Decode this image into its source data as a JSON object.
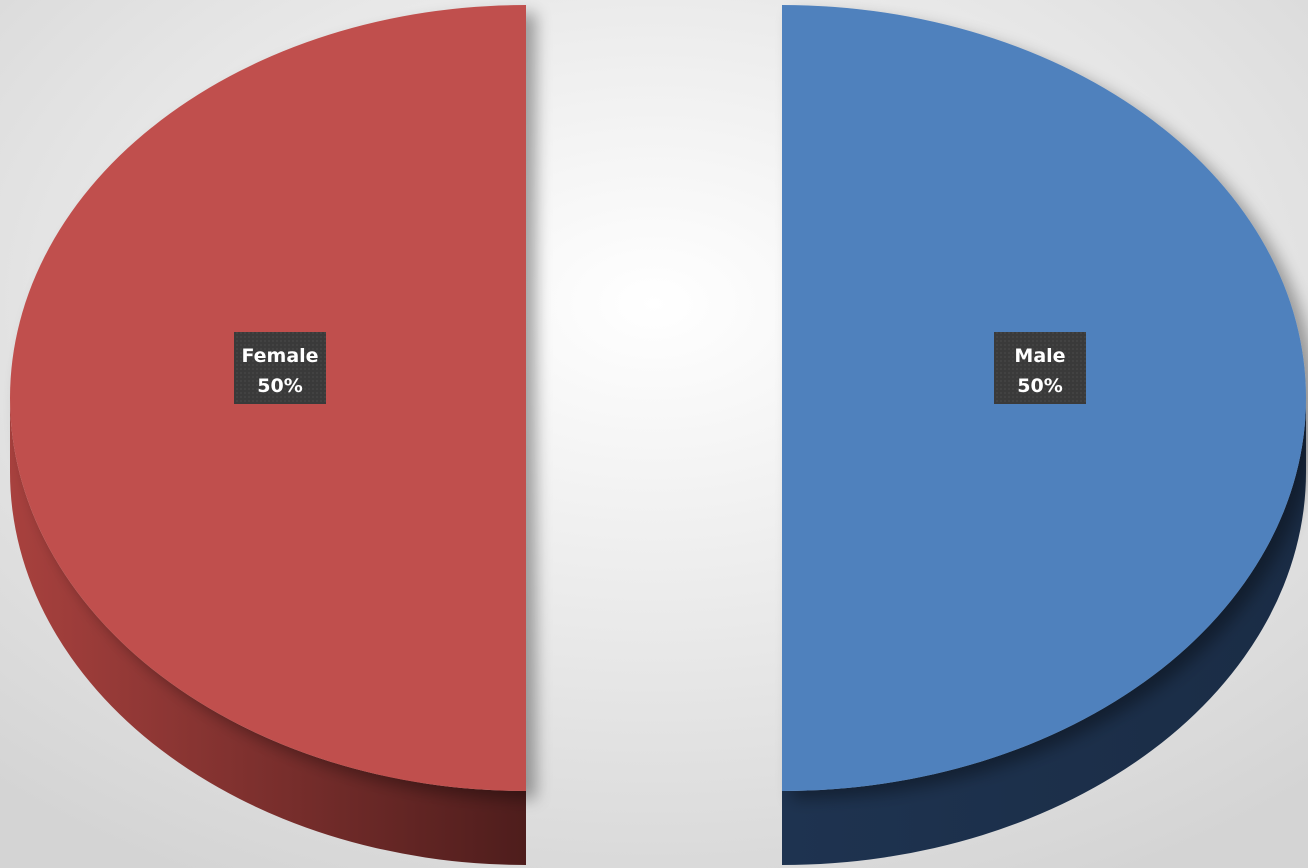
{
  "chart_data": {
    "type": "pie",
    "style": "3d-exploded",
    "series": [
      {
        "values": [
          50,
          50
        ],
        "categories": [
          "Female",
          "Male"
        ],
        "labels": [
          {
            "category": "Female",
            "percent": "50%"
          },
          {
            "category": "Male",
            "percent": "50%"
          }
        ]
      }
    ],
    "colors": {
      "Female": "#c0504d",
      "Female_side": "#7a2a28",
      "Male": "#4f81bd",
      "Male_side": "#1f3552",
      "background_start": "#ffffff",
      "background_end": "#d9d9d9",
      "label_bg": "#3a3a3a"
    },
    "legend": "none"
  }
}
